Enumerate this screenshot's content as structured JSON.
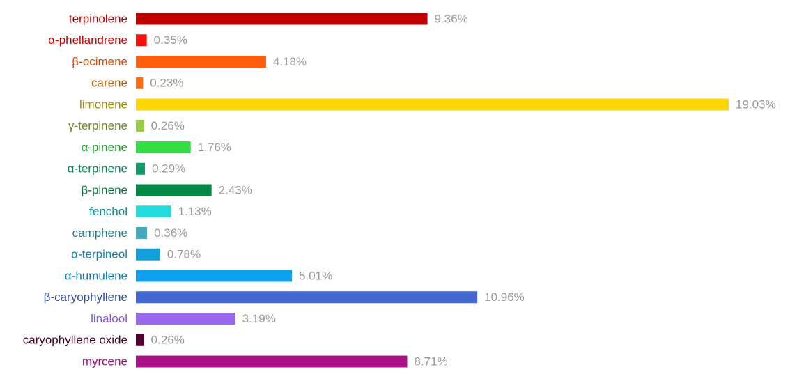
{
  "chart_data": {
    "type": "bar",
    "orientation": "horizontal",
    "categories": [
      "terpinolene",
      "α-phellandrene",
      "β-ocimene",
      "carene",
      "limonene",
      "γ-terpinene",
      "α-pinene",
      "α-terpinene",
      "β-pinene",
      "fenchol",
      "camphene",
      "α-terpineol",
      "α-humulene",
      "β-caryophyllene",
      "linalool",
      "caryophyllene oxide",
      "myrcene"
    ],
    "values": [
      9.36,
      0.35,
      4.18,
      0.23,
      19.03,
      0.26,
      1.76,
      0.29,
      2.43,
      1.13,
      0.36,
      0.78,
      5.01,
      10.96,
      3.19,
      0.26,
      8.71
    ],
    "value_labels": [
      "9.36%",
      "0.35%",
      "4.18%",
      "0.23%",
      "19.03%",
      "0.26%",
      "1.76%",
      "0.29%",
      "2.43%",
      "1.13%",
      "0.36%",
      "0.78%",
      "5.01%",
      "10.96%",
      "3.19%",
      "0.26%",
      "8.71%"
    ],
    "colors": [
      "#c00000",
      "#ff0d0d",
      "#ff5f0f",
      "#ff6a12",
      "#ffd600",
      "#97cc45",
      "#33dd44",
      "#119966",
      "#008844",
      "#22dddd",
      "#44a8bb",
      "#10a0dd",
      "#0fa0ee",
      "#4466d0",
      "#9966ee",
      "#550033",
      "#aa1188"
    ],
    "label_colors": [
      "#b30000",
      "#cc0000",
      "#d94c00",
      "#c06000",
      "#a08c00",
      "#6b8a1e",
      "#22a030",
      "#0f8050",
      "#007a3a",
      "#0f8f8f",
      "#1f7f8f",
      "#0b7fb0",
      "#0b7fc0",
      "#3350a8",
      "#8855dd",
      "#440028",
      "#991177"
    ]
  }
}
